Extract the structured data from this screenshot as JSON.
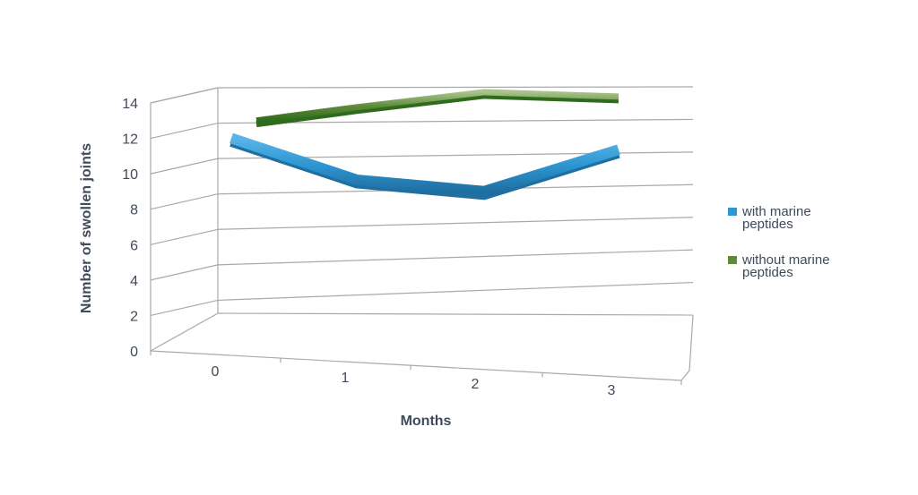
{
  "chart_data": {
    "type": "line",
    "title": "",
    "xlabel": "Months",
    "ylabel": "Number of swollen joints",
    "x": [
      0,
      1,
      2,
      3
    ],
    "categories": [
      "0",
      "1",
      "2",
      "3"
    ],
    "ylim": [
      0,
      14
    ],
    "yticks": [
      0,
      2,
      4,
      6,
      8,
      10,
      12,
      14
    ],
    "grid": true,
    "three_d": true,
    "legend_position": "right",
    "series": [
      {
        "name": "with marine peptides",
        "label_lines": [
          "with marine",
          "peptides"
        ],
        "values": [
          11.5,
          9,
          8.2,
          10.4
        ],
        "color": "#2e96d2",
        "highlight": "#5ab4ea",
        "shadow": "#1f6fa1"
      },
      {
        "name": "without marine peptides",
        "label_lines": [
          "without marine",
          "peptides"
        ],
        "values": [
          12.5,
          13.1,
          13.8,
          13.4
        ],
        "color": "#5e8a3a",
        "highlight": "#a8c48a",
        "shadow": "#2f6b1c"
      }
    ]
  }
}
